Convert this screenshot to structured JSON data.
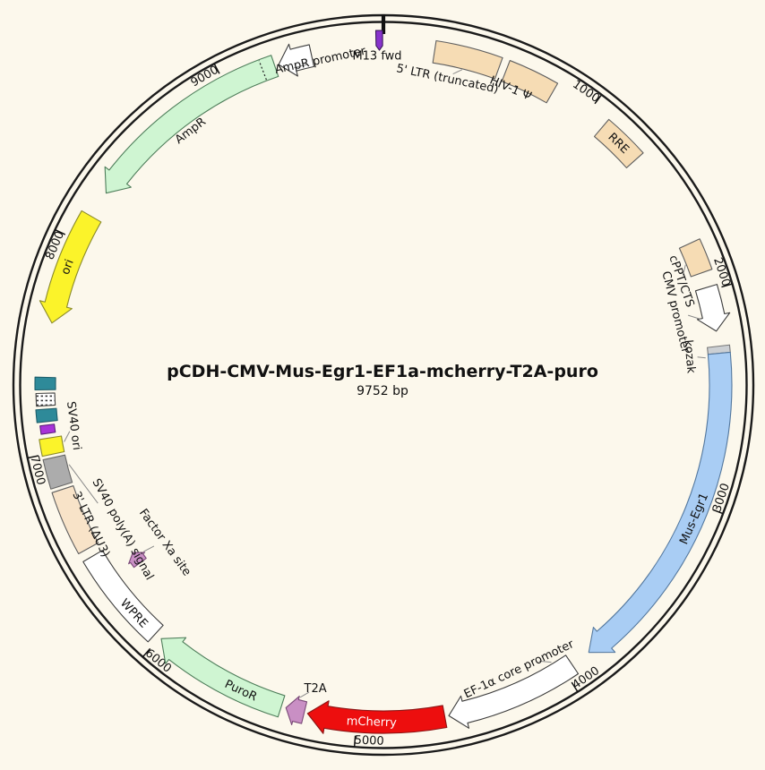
{
  "title": {
    "plasmid_name": "pCDH-CMV-Mus-Egr1-EF1a-mcherry-T2A-puro",
    "length_label": "9752 bp"
  },
  "chart_data": {
    "type": "plasmid-map",
    "plasmid_name": "pCDH-CMV-Mus-Egr1-EF1a-mcherry-T2A-puro",
    "length_bp": 9752,
    "length_label": "9752 bp",
    "backbone_color": "#1b1b1b",
    "background_color": "#FCF8EC",
    "ticks": [
      1000,
      2000,
      3000,
      4000,
      5000,
      6000,
      7000,
      8000,
      9000
    ],
    "features": [
      {
        "id": "five-ltr-truncated",
        "label": "5' LTR (truncated)",
        "start": 236,
        "end": 542,
        "kind": "box",
        "dir": "none",
        "fill": "#F6DCB4",
        "stroke": "#5f5f5f",
        "label_spec": {
          "mode": "callout",
          "theta": 11.8,
          "r": 349,
          "leader": [
            [
              14,
              363
            ],
            [
              12.6,
              356
            ]
          ]
        }
      },
      {
        "id": "hiv-1-psi",
        "label": "HIV-1 Ψ",
        "start": 577,
        "end": 813,
        "kind": "box",
        "dir": "none",
        "fill": "#F6DCB4",
        "stroke": "#5f5f5f",
        "label_spec": {
          "mode": "callout",
          "theta": 23.2,
          "r": 360
        }
      },
      {
        "id": "rre",
        "label": "RRE",
        "start": 1092,
        "end": 1306,
        "kind": "box",
        "dir": "none",
        "fill": "#F6DCB4",
        "stroke": "#5f5f5f",
        "label_spec": {
          "mode": "band",
          "theta": 44.2,
          "r": 376
        }
      },
      {
        "id": "cppt-cts",
        "label": "cPPT/CTS",
        "start": 1766,
        "end": 1912,
        "kind": "box",
        "dir": "none",
        "fill": "#F6DCB4",
        "stroke": "#5f5f5f",
        "label_spec": {
          "mode": "callout",
          "theta": 70.8,
          "r": 352,
          "leader": [
            [
              68.3,
              363
            ],
            [
              69.9,
              356
            ]
          ]
        }
      },
      {
        "id": "cmv-promoter",
        "label": "CMV promoter",
        "start": 1983,
        "end": 2189,
        "kind": "arrow",
        "dir": "cw",
        "fill": "#FFFFFF",
        "stroke": "#3c3c3c",
        "head_deg": 2.6,
        "label_spec": {
          "mode": "callout",
          "theta": 76,
          "r": 336,
          "leader": [
            [
              78.3,
              362
            ],
            [
              77.1,
              349
            ]
          ]
        }
      },
      {
        "id": "kozak",
        "label": "kozak",
        "start": 2259,
        "end": 2292,
        "kind": "box",
        "dir": "none",
        "fill": "#CBCFD3",
        "stroke": "#777777",
        "label_spec": {
          "mode": "callout",
          "theta": 84.7,
          "r": 343,
          "leader": [
            [
              85.2,
              361
            ],
            [
              84.9,
              352
            ]
          ]
        }
      },
      {
        "id": "mus-egr1",
        "label": "Mus-Egr1",
        "start": 2292,
        "end": 3860,
        "kind": "arrow",
        "dir": "cw",
        "fill": "#A9CDF4",
        "stroke": "#54789e",
        "head_deg": 3.4,
        "label_spec": {
          "mode": "band",
          "theta": 113.3,
          "r": 378
        }
      },
      {
        "id": "ef1a-core-promoter",
        "label": "EF-1α core promoter",
        "start": 3955,
        "end": 4573,
        "kind": "arrow",
        "dir": "cw",
        "fill": "#FFFFFF",
        "stroke": "#3c3c3c",
        "head_deg": 2.8,
        "label_spec": {
          "mode": "callout",
          "theta": 154.5,
          "r": 352,
          "leader": [
            [
              148.8,
              362
            ],
            [
              150.6,
              354
            ]
          ]
        }
      },
      {
        "id": "mcherry",
        "label": "mCherry",
        "start": 4592,
        "end": 5228,
        "kind": "arrow",
        "dir": "cw",
        "fill": "#ED0E0E",
        "stroke": "#8b1515",
        "head_deg": 3.2,
        "label_spec": {
          "mode": "band",
          "theta": 182,
          "r": 377,
          "fill": "#FFFFFF"
        }
      },
      {
        "id": "t2a",
        "label": "T2A",
        "start": 5244,
        "end": 5331,
        "kind": "arrow",
        "dir": "cw",
        "fill": "#C98FC4",
        "stroke": "#7a4a78",
        "head_deg": 1.7,
        "flare": 4,
        "label_spec": {
          "mode": "callout",
          "theta": 192.6,
          "r": 348,
          "rot": 0,
          "leader": [
            [
              194.9,
              361
            ],
            [
              193.6,
              353
            ]
          ]
        }
      },
      {
        "id": "puror",
        "label": "PuroR",
        "start": 5353,
        "end": 5992,
        "kind": "arrow",
        "dir": "cw",
        "fill": "#CFF5D2",
        "stroke": "#4e7d5a",
        "head_deg": 3.2,
        "label_spec": {
          "mode": "band",
          "theta": 205,
          "r": 377
        }
      },
      {
        "id": "wpre",
        "label": "WPRE",
        "start": 6027,
        "end": 6488,
        "kind": "box",
        "dir": "none",
        "fill": "#FFFFFF",
        "stroke": "#3c3c3c",
        "label_spec": {
          "mode": "band",
          "theta": 227.5,
          "r": 378
        }
      },
      {
        "id": "factor-xa-site",
        "label": "Factor Xa site",
        "start": 6334,
        "end": 6399,
        "kind": "arrow",
        "dir": "cw",
        "fill": "#C98FC4",
        "stroke": "#7a4a78",
        "head_deg": 1.3,
        "flare": 2.5,
        "r_in": 328,
        "r_out": 345,
        "label_spec": {
          "mode": "callout",
          "theta": 234.2,
          "r": 301,
          "leader": [
            [
              235.2,
              326
            ],
            [
              234.9,
              313
            ]
          ]
        }
      },
      {
        "id": "three-ltr-du3",
        "label": "3' LTR (ΔU3)",
        "start": 6529,
        "end": 6826,
        "kind": "box",
        "dir": "none",
        "fill": "#F8E3C8",
        "stroke": "#5f5f5f",
        "label_spec": {
          "mode": "callout",
          "theta": 244.5,
          "r": 362
        }
      },
      {
        "id": "sv40-polya-signal",
        "label": "SV40 poly(A) signal",
        "start": 6843,
        "end": 6978,
        "kind": "box",
        "dir": "none",
        "fill": "#ACACAC",
        "stroke": "#666666",
        "label_spec": {
          "mode": "callout",
          "theta": 241,
          "r": 333,
          "leader": [
            [
              255.8,
              362
            ],
            [
              247.5,
              345
            ]
          ]
        }
      },
      {
        "id": "sv40-ori",
        "label": "SV40 ori",
        "start": 6994,
        "end": 7070,
        "kind": "box",
        "dir": "none",
        "fill": "#FBF32A",
        "stroke": "#8a8a2a",
        "label_spec": {
          "mode": "callout",
          "theta": 262.5,
          "r": 349,
          "leader": [
            [
              259.9,
              362
            ],
            [
              261.6,
              354
            ]
          ]
        }
      },
      {
        "id": "sv40-element-purple",
        "label": "",
        "start": 7092,
        "end": 7130,
        "kind": "box",
        "dir": "none",
        "fill": "#A833D8",
        "stroke": "#5a1f7a",
        "r_in": 370,
        "r_out": 386
      },
      {
        "id": "sv40-element-teal-1",
        "label": "",
        "start": 7146,
        "end": 7203,
        "kind": "box",
        "dir": "none",
        "fill": "#2E8A99",
        "stroke": "#1f5f6b",
        "r_in": 366,
        "r_out": 389
      },
      {
        "id": "sv40-element-hatched",
        "label": "",
        "start": 7219,
        "end": 7276,
        "kind": "box",
        "dir": "none",
        "fill": "hatch",
        "stroke": "#444444",
        "r_in": 367,
        "r_out": 388
      },
      {
        "id": "sv40-element-teal-2",
        "label": "",
        "start": 7292,
        "end": 7349,
        "kind": "box",
        "dir": "none",
        "fill": "#2E8A99",
        "stroke": "#1f5f6b",
        "r_in": 366,
        "r_out": 389
      },
      {
        "id": "ori",
        "label": "ori",
        "start": 7601,
        "end": 8127,
        "kind": "arrow",
        "dir": "ccw",
        "fill": "#FBF32A",
        "stroke": "#8a8a2a",
        "head_deg": 3.2,
        "label_spec": {
          "mode": "band",
          "theta": 290.5,
          "r": 376
        }
      },
      {
        "id": "ampr",
        "label": "AmpR",
        "start": 8254,
        "end": 9243,
        "kind": "arrow",
        "dir": "ccw",
        "fill": "#CFF5D2",
        "stroke": "#4e7d5a",
        "head_deg": 3.4,
        "divider_bp": 9184,
        "label_spec": {
          "mode": "callout",
          "theta": 322.8,
          "r": 356
        }
      },
      {
        "id": "ampr-promoter",
        "label": "AmpR promoter",
        "start": 9262,
        "end": 9419,
        "kind": "arrow",
        "dir": "ccw",
        "fill": "#FFFFFF",
        "stroke": "#3c3c3c",
        "head_deg": 2.6,
        "label_spec": {
          "mode": "callout",
          "theta": 349,
          "r": 369,
          "rot": -12,
          "leader": [
            [
              344.3,
              368
            ],
            [
              346.6,
              368
            ]
          ]
        }
      },
      {
        "id": "m13-fwd",
        "label": "M13 fwd",
        "start": 9715,
        "end": 9752,
        "kind": "radial-marker",
        "dir": "cw",
        "fill": "#8833CC",
        "stroke": "#3a1a5a",
        "r_in": 374,
        "r_out": 396,
        "label_spec": {
          "mode": "callout",
          "theta": 358.9,
          "r": 367,
          "rot": 0
        }
      }
    ]
  }
}
